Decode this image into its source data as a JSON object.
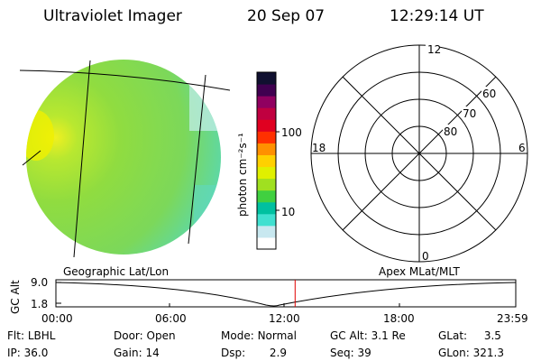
{
  "header": {
    "title": "Ultraviolet Imager",
    "date": "20 Sep 07",
    "time": "12:29:14 UT"
  },
  "colorbar": {
    "unit_label": "photon cm⁻²s⁻¹",
    "tick_100": "100",
    "tick_10": "10",
    "colors": [
      "#ffffff",
      "#c8e8f0",
      "#40e0d0",
      "#00c0a0",
      "#40d040",
      "#a0e020",
      "#e0f000",
      "#ffd000",
      "#ff9000",
      "#ff3000",
      "#e00020",
      "#c00040",
      "#900060",
      "#400050",
      "#101030"
    ]
  },
  "polar_plot": {
    "mlt_labels": {
      "top": "12",
      "left": "18",
      "right": "6",
      "bottom": "0"
    },
    "lat_labels": [
      "60",
      "70",
      "80"
    ]
  },
  "timeline": {
    "left_caption": "Geographic Lat/Lon",
    "right_caption": "Apex  MLat/MLT",
    "y_label": "GC Alt",
    "y_ticks": [
      "9.0",
      "1.8"
    ],
    "x_ticks": [
      "00:00",
      "06:00",
      "12:00",
      "18:00",
      "23:59"
    ],
    "marker_time": "12:29",
    "marker_color": "#e00000"
  },
  "status": {
    "flt_label": "Flt:",
    "flt_value": "LBHL",
    "door_label": "Door:",
    "door_value": "Open",
    "mode_label": "Mode:",
    "mode_value": "Normal",
    "gcalt_label": "GC Alt:",
    "gcalt_value": "3.1 Re",
    "glat_label": "GLat:",
    "glat_value": "3.5",
    "ip_label": "IP:",
    "ip_value": "36.0",
    "gain_label": "Gain:",
    "gain_value": "14",
    "dsp_label": "Dsp:",
    "dsp_value": "2.9",
    "seq_label": "Seq:",
    "seq_value": "39",
    "glon_label": "GLon:",
    "glon_value": "321.3"
  }
}
